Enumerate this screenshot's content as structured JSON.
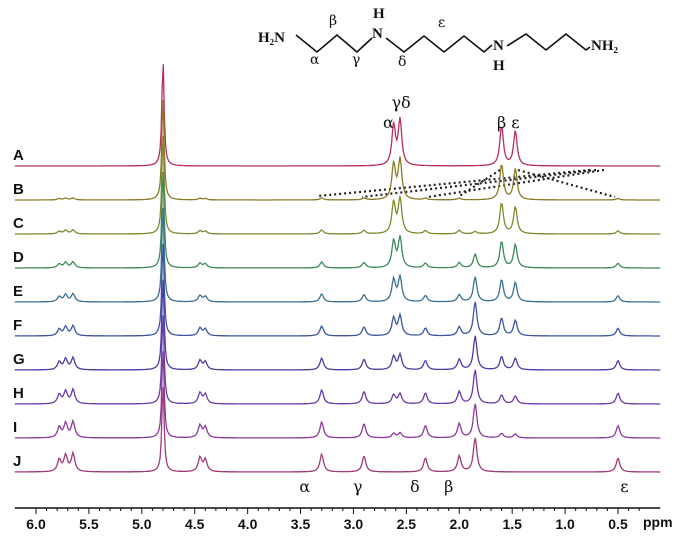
{
  "chart_data": {
    "type": "line",
    "title": "",
    "xlabel": "ppm",
    "ylabel": "",
    "xlim": [
      6.2,
      0.1
    ],
    "x_reversed": true,
    "x_ticks": [
      "6.0",
      "5.5",
      "5.0",
      "4.5",
      "4.0",
      "3.5",
      "3.0",
      "2.5",
      "2.0",
      "1.5",
      "1.0",
      "0.5"
    ],
    "x_tick_values": [
      6.0,
      5.5,
      5.0,
      4.5,
      4.0,
      3.5,
      3.0,
      2.5,
      2.0,
      1.5,
      1.0,
      0.5
    ],
    "series": [
      {
        "name": "A",
        "color": "#b8305a"
      },
      {
        "name": "B",
        "color": "#8a7a28"
      },
      {
        "name": "C",
        "color": "#7c8a2c"
      },
      {
        "name": "D",
        "color": "#3c8a5a"
      },
      {
        "name": "E",
        "color": "#3a7090"
      },
      {
        "name": "F",
        "color": "#3c55a0"
      },
      {
        "name": "G",
        "color": "#4a3ca0"
      },
      {
        "name": "H",
        "color": "#6a3aa8"
      },
      {
        "name": "I",
        "color": "#8a3a9a"
      },
      {
        "name": "J",
        "color": "#a03a78"
      }
    ],
    "peak_positions_ppm": {
      "alpha": [
        2.62,
        3.3
      ],
      "gamma_delta": [
        2.56,
        2.9,
        2.32
      ],
      "beta": [
        1.6,
        2.0
      ],
      "epsilon": [
        1.47,
        0.5
      ],
      "sugar": [
        5.78,
        5.72,
        5.65,
        4.45,
        4.4
      ],
      "water": 4.8,
      "other": 1.85
    },
    "top_peak_labels": [
      {
        "text": "α",
        "ppm": 2.67
      },
      {
        "text": "γδ",
        "ppm": 2.55
      },
      {
        "text": "β",
        "ppm": 1.6
      },
      {
        "text": "ε",
        "ppm": 1.47
      }
    ],
    "bottom_peak_labels": [
      {
        "text": "α",
        "ppm": 3.46
      },
      {
        "text": "γ",
        "ppm": 2.96
      },
      {
        "text": "δ",
        "ppm": 2.42
      },
      {
        "text": "β",
        "ppm": 2.1
      },
      {
        "text": "ε",
        "ppm": 0.44
      }
    ]
  },
  "molecule": {
    "left_amine": "H₂N",
    "nh1_h": "H",
    "nh1_n": "N",
    "nh2_n": "N",
    "nh2_h": "H",
    "right_amine": "NH₂",
    "labels": {
      "alpha": "α",
      "beta": "β",
      "gamma": "γ",
      "delta": "δ",
      "epsilon": "ε"
    }
  }
}
